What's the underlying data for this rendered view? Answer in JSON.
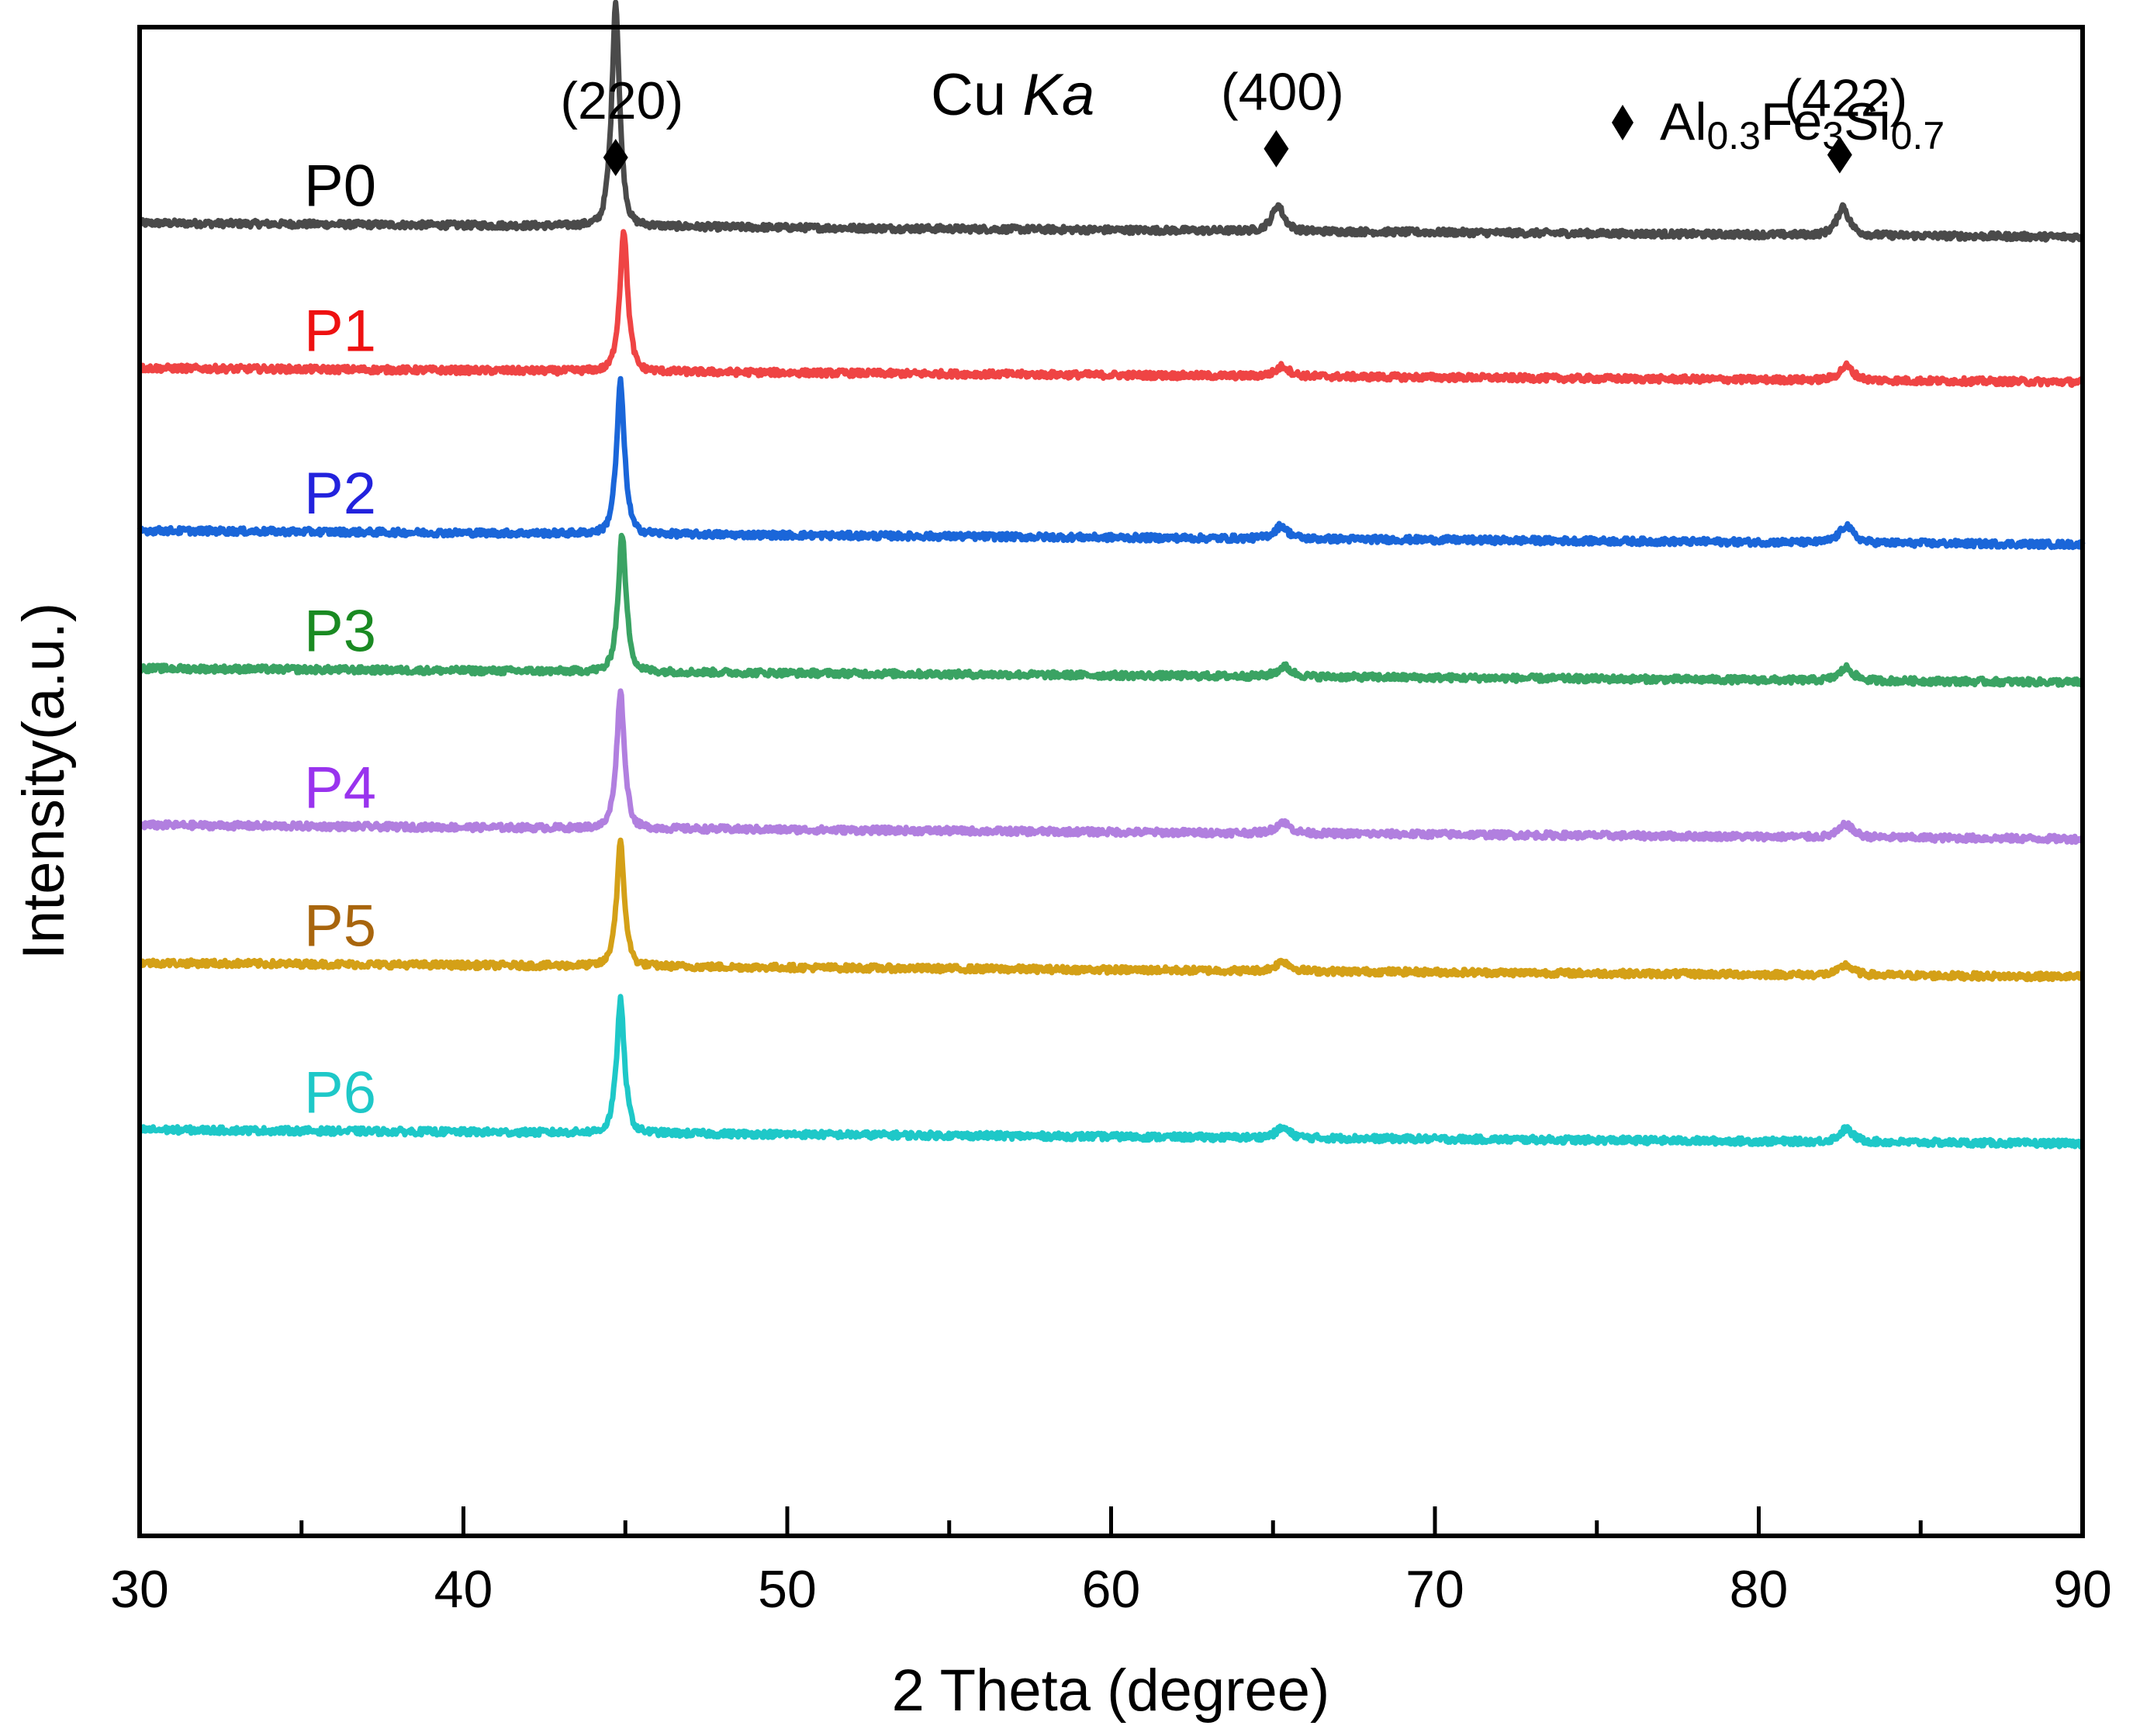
{
  "chart_data": {
    "type": "line",
    "title": "Cu Ka",
    "title_parts": {
      "prefix": "Cu ",
      "italic": "Ka"
    },
    "xlabel": "2 Theta (degree)",
    "ylabel": "Intensity(a.u.)",
    "xlim": [
      30,
      90
    ],
    "ylim": [
      -1.2,
      9.2
    ],
    "xticks": [
      30,
      40,
      50,
      60,
      70,
      80,
      90
    ],
    "xtick_labels": [
      "30",
      "40",
      "50",
      "60",
      "70",
      "80",
      "90"
    ],
    "minor_xticks": [
      35,
      45,
      55,
      65,
      75,
      85
    ],
    "y_ticks_shown": false,
    "grid": false,
    "legend": {
      "position": "top-right",
      "marker": "diamond",
      "text": "Al0.3Fe3Si0.7",
      "formula_parts": [
        {
          "text": "Al",
          "sub": "0.3"
        },
        {
          "text": "Fe",
          "sub": "3"
        },
        {
          "text": "Si",
          "sub": "0.7"
        }
      ]
    },
    "annotations": [
      {
        "label": "(220)",
        "x": 44.7
      },
      {
        "label": "(400)",
        "x": 65.1
      },
      {
        "label": "(422)",
        "x": 82.5
      }
    ],
    "series": [
      {
        "name": "P0",
        "color": "#4a4a4a",
        "label_color": "#000000",
        "baseline": 7.85,
        "peaks": [
          {
            "x": 44.7,
            "height": 1.55,
            "width": 0.12
          },
          {
            "x": 65.15,
            "height": 0.18,
            "width": 0.18
          },
          {
            "x": 82.6,
            "height": 0.2,
            "width": 0.18
          }
        ]
      },
      {
        "name": "P1",
        "color": "#ef4444",
        "label_color": "#ee1111",
        "baseline": 6.85,
        "peaks": [
          {
            "x": 44.95,
            "height": 0.98,
            "width": 0.12
          },
          {
            "x": 65.3,
            "height": 0.07,
            "width": 0.2
          },
          {
            "x": 82.7,
            "height": 0.1,
            "width": 0.2
          }
        ]
      },
      {
        "name": "P2",
        "color": "#1a66d9",
        "label_color": "#2222dd",
        "baseline": 5.73,
        "peaks": [
          {
            "x": 44.85,
            "height": 1.05,
            "width": 0.12
          },
          {
            "x": 65.25,
            "height": 0.09,
            "width": 0.2
          },
          {
            "x": 82.7,
            "height": 0.12,
            "width": 0.2
          }
        ]
      },
      {
        "name": "P3",
        "color": "#3aa363",
        "label_color": "#1a8a22",
        "baseline": 4.78,
        "peaks": [
          {
            "x": 44.9,
            "height": 0.95,
            "width": 0.12
          },
          {
            "x": 65.35,
            "height": 0.07,
            "width": 0.2
          },
          {
            "x": 82.7,
            "height": 0.09,
            "width": 0.2
          }
        ]
      },
      {
        "name": "P4",
        "color": "#b17fdf",
        "label_color": "#9933ee",
        "baseline": 3.7,
        "peaks": [
          {
            "x": 44.85,
            "height": 0.95,
            "width": 0.12
          },
          {
            "x": 65.3,
            "height": 0.08,
            "width": 0.2
          },
          {
            "x": 82.7,
            "height": 0.09,
            "width": 0.2
          }
        ]
      },
      {
        "name": "P5",
        "color": "#d4a017",
        "label_color": "#a8650d",
        "baseline": 2.75,
        "peaks": [
          {
            "x": 44.85,
            "height": 0.85,
            "width": 0.12
          },
          {
            "x": 65.3,
            "height": 0.07,
            "width": 0.2
          },
          {
            "x": 82.7,
            "height": 0.07,
            "width": 0.2
          }
        ]
      },
      {
        "name": "P6",
        "color": "#1ec8c8",
        "label_color": "#1ec8c8",
        "baseline": 1.6,
        "peaks": [
          {
            "x": 44.85,
            "height": 0.92,
            "width": 0.12
          },
          {
            "x": 65.3,
            "height": 0.07,
            "width": 0.2
          },
          {
            "x": 82.7,
            "height": 0.09,
            "width": 0.2
          }
        ]
      }
    ]
  }
}
